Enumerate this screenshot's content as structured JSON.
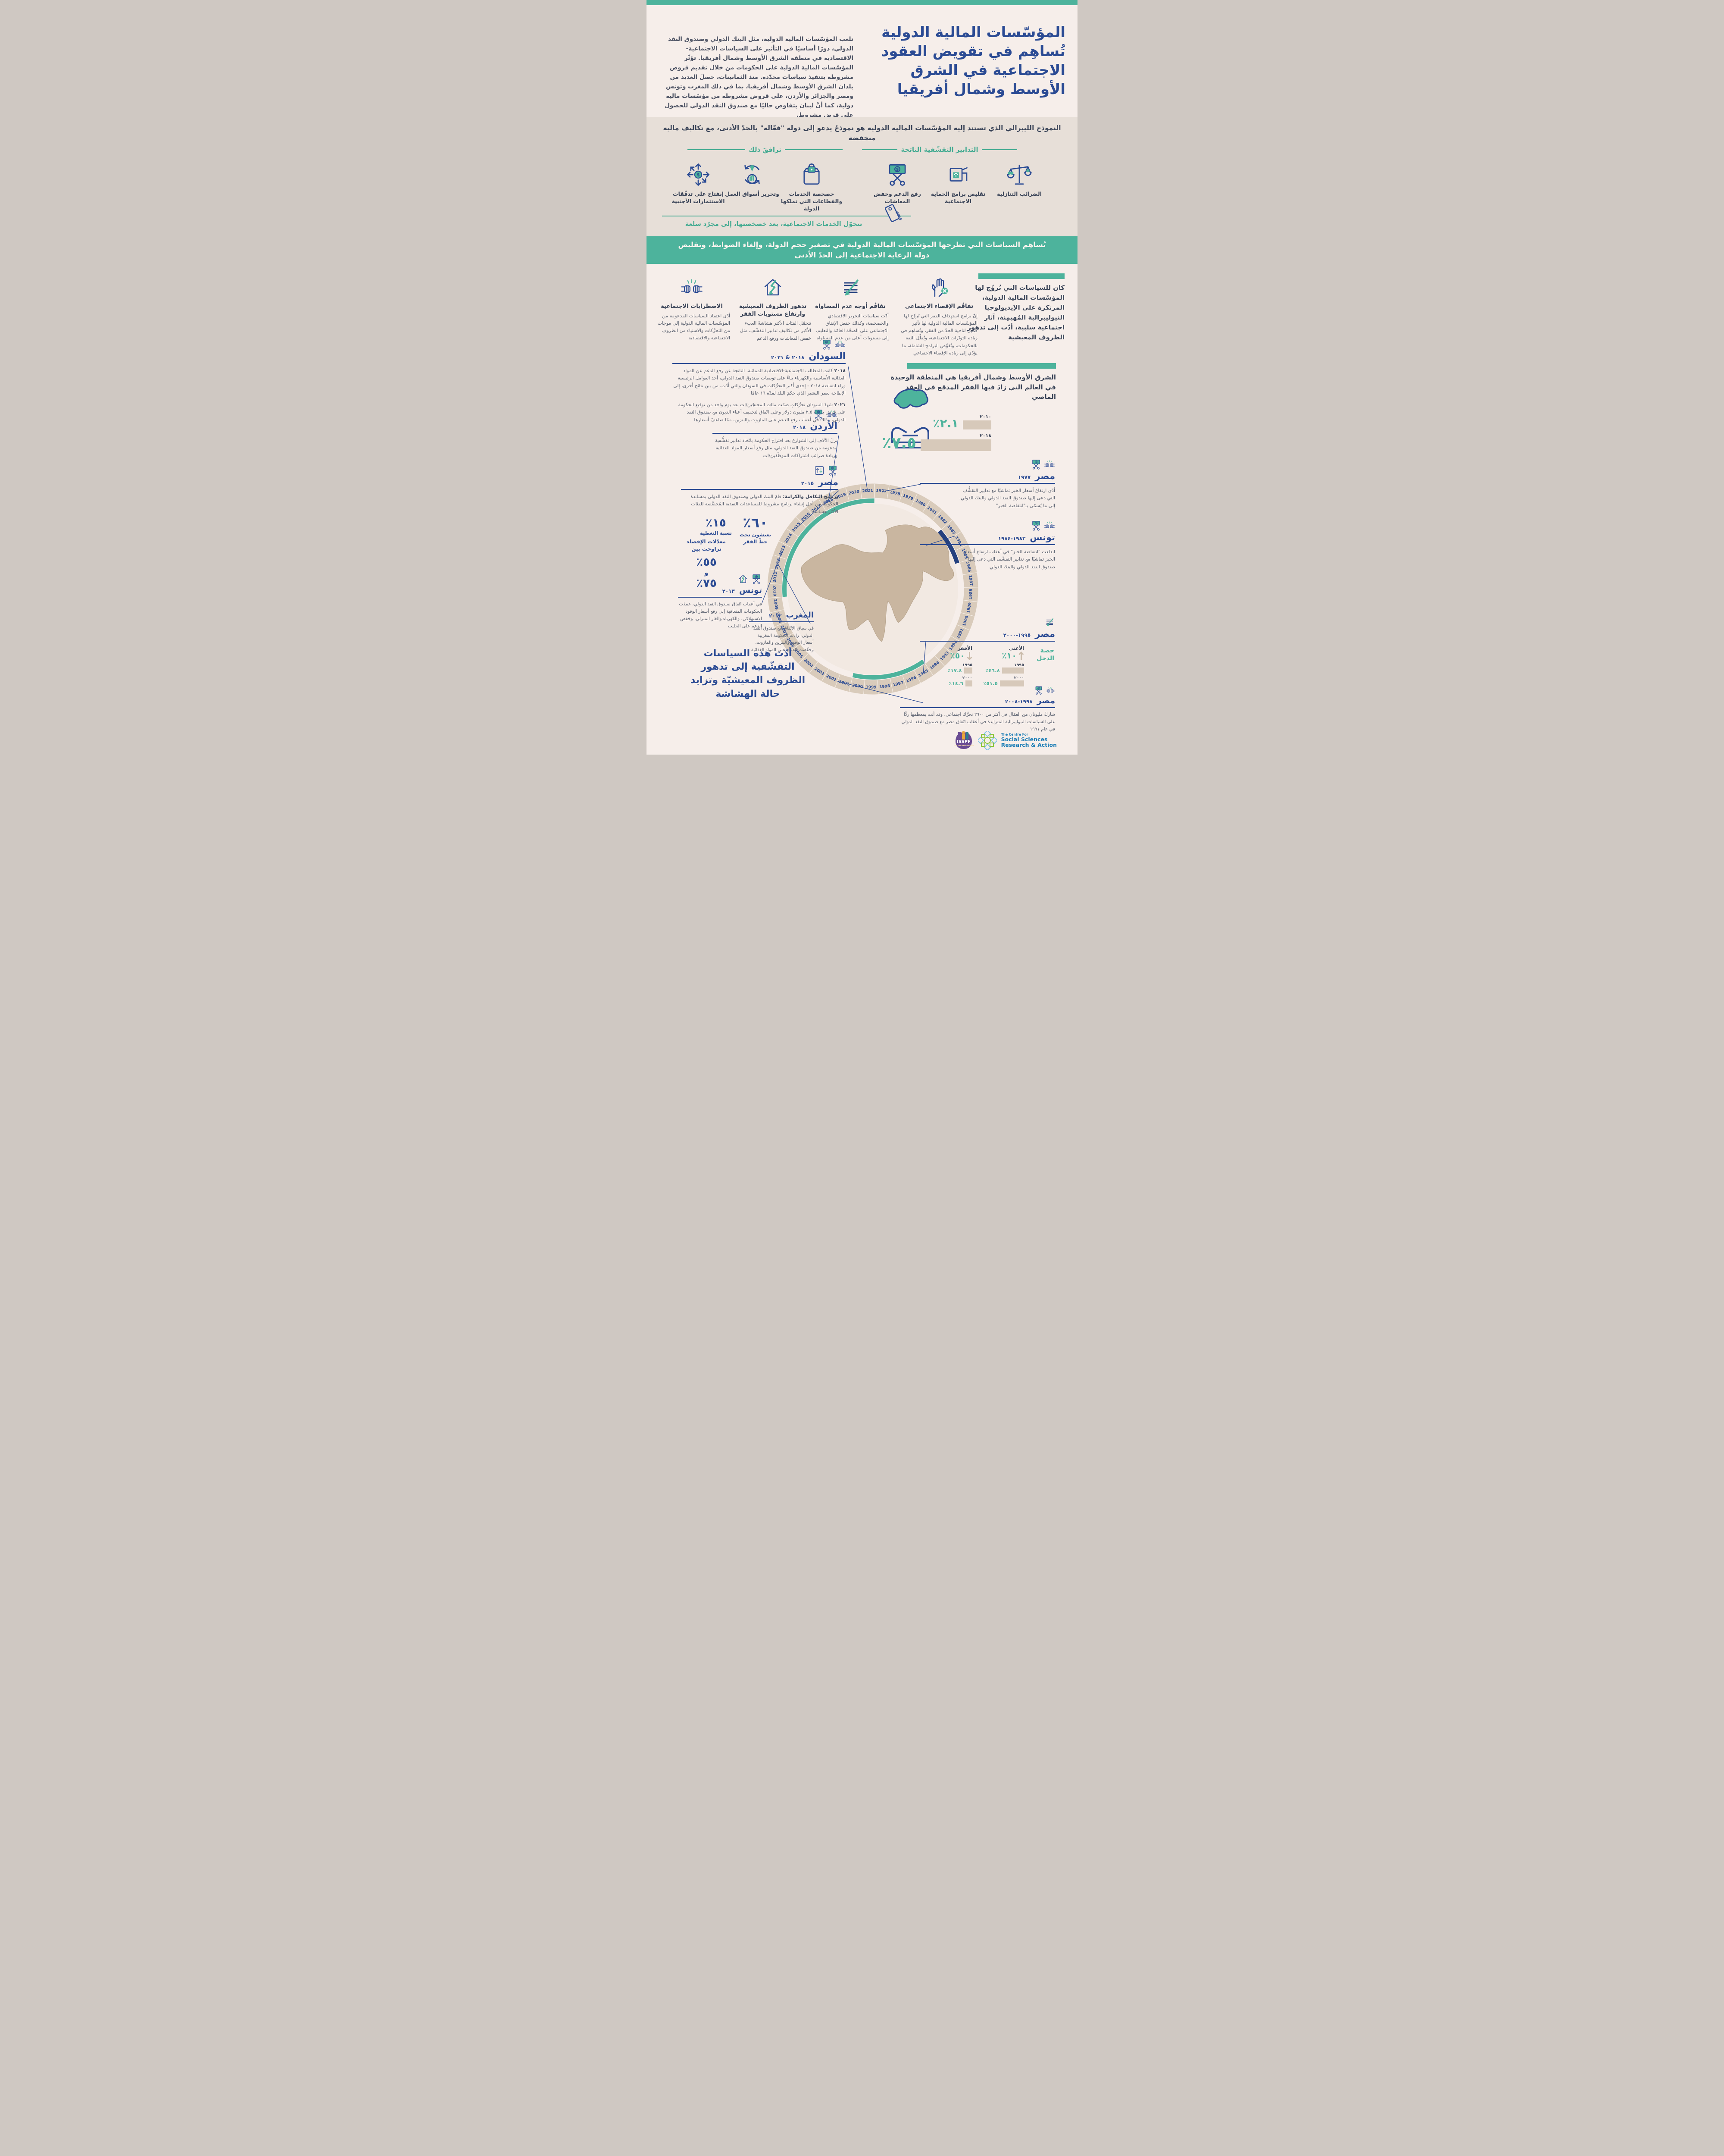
{
  "page": {
    "bg": "#f6eeea",
    "accent_green": "#4db39c",
    "navy": "#2b4b94",
    "dark_navy": "#24407e",
    "text_gray": "#5b6270",
    "beige": "#e7dfd8",
    "bar_beige": "#d7c9ba"
  },
  "header": {
    "title": "المؤسّسات المالية الدولية تُساهِم في تقويض العقود الاجتماعية في الشرق الأوسط وشمال أفريقيا",
    "intro": "تلعب المؤسّسات المالية الدولية، مثل البنك الدولي وصندوق النقد الدولي، دورًا أساسيًا في التأثير على السياسات الاجتماعية-الاقتصادية في منطقة الشرق الأوسط وشمال أفريقيا. تؤثّر المؤسّسات المالية الدولية على الحكومات من خلال تقديم قروض مشروطة بتنفيذ سياسات محدّدة. منذ الثمانينات، حصلَ العديد من بلدان الشرق الأوسط وشمال أفريقيا، بما في ذلك المغرب وتونس ومصر والجزائر والأردن، على قروض مشروطة من مؤسّسات مالية دولية، كما أنَّ لبنان يتفاوض حاليًا مع صندوق النقد الدولي للحصول على قرض مشروط."
  },
  "model": {
    "text": "النموذج الليبرالي الذي تستند إليه المؤسّسات المالية الدولية هو نموذجٌ يدعو إلى دولة \"فعّالة\" بالحدّ الأدنى، مع تكاليف مالية منخفضة"
  },
  "austerity": {
    "right_header": "التدابير التقشّفية الناتجة",
    "left_header": "ترافقَ ذلك",
    "measures": [
      {
        "icon": "scales-icon",
        "label": "الضرائب التنازلية"
      },
      {
        "icon": "social-protection-cut-icon",
        "label": "تقليص برامج الحماية الاجتماعية"
      },
      {
        "icon": "cut-subsidies-icon",
        "label": "رفع الدعم وخفض المعاشات"
      }
    ],
    "accompanied": [
      {
        "icon": "privatization-lock-icon",
        "label": "خصخصة الخدمات والقطاعات التي تملكها الدولة"
      },
      {
        "icon": "labor-market-icon",
        "label": "وتحرير أسواق العمل"
      },
      {
        "icon": "foreign-investment-icon",
        "label": "إنفتاح على تدفّقات الاستثمارات الأجنبية"
      }
    ],
    "sale_tag": "SALE",
    "note": "تتحوّل الخدمات الاجتماعية، بعد خصخصتها، إلى مجرّد سلعة"
  },
  "green_band": {
    "text": "تُساهِم السياسات التي تطرحها المؤسّسات المالية الدولية في تصغير حجم الدولة، وإلغاء الضوابط، وتقليص دولة الرعاية الاجتماعية إلى الحدّ الأدنى"
  },
  "impacts": {
    "paragraph": "كان للسياسات التي تُروِّج لها المؤسّسات المالية الدولية، المرتكزة على الإيديولوجيا النيوليبرالية المُهيمِنة، آثار اجتماعية سلبية، أدّت إلى تدهور الظروف المعيشية",
    "items": [
      {
        "icon": "hand-stop-icon",
        "title": "تفاقُم الإقصاء الاجتماعي",
        "text": "إنّ برامج استهداف الفقر التي تُروِّج لها المؤسّسات المالية الدولية لها تأثير ضئيل لناحية الحدّ من الفقر، وتُساهِم في زيادة التوتّرات الاجتماعية، وتُقلِّل الثقة بالحكومات، وتُقوِّض البرامج الشاملة، ما يؤدّي إلى زيادة الإقصاء الاجتماعي"
      },
      {
        "icon": "inequality-icon",
        "title": "تفاقُم أوجه عدم المساواة",
        "text": "أدّت سياسات التحرير الاقتصادي والخصخصة، وكذلك خفض الإنفاق الاجتماعي على الصحّة العامّة والتعليم، إلى مستويات أعلى من عدم المساواة"
      },
      {
        "icon": "house-decline-icon",
        "title": "تدهور الظروف المعيشية وارتفاع مستويات الفقر",
        "text": "تتحمّل الفئات الأكثر هشاشةً العبء الأكبر من تكاليف تدابير التقشّف، مثل خفض المعاشات ورفع الدعم"
      },
      {
        "icon": "unrest-icon",
        "title": "الاضطرابات الاجتماعية",
        "text": "أدّى اعتماد السياسات المدعومة من المؤسّسات المالية الدولية إلى موجات من التحرُّكات والاستياء من الظروف الاجتماعية والاقتصادية"
      }
    ]
  },
  "mena": {
    "headline": "الشرق الأوسط وشمال أفريقيا هي المنطقة الوحيدة في العالم التي زادَ فيها الفقر المدقع في العقد الماضي",
    "icon": "hands-region-icon",
    "bars": [
      {
        "year": "٢٠١٠",
        "value": "٢.١٪",
        "pct": 2.1
      },
      {
        "year": "٢٠١٨",
        "value": "٧.٥٪",
        "pct": 7.5
      }
    ]
  },
  "countries": {
    "sudan": {
      "name": "السودان",
      "period": "٢٠١٨ & ٢٠٢١",
      "icons": [
        "unrest-icon",
        "cut-subsidies-icon"
      ],
      "events": [
        {
          "year": "٢٠١٨",
          "text": "كانت المطالب الاجتماعية-الاقتصادية المماثلة، الناتجة عن رفع الدعم عن المواد الغذائية الأساسية والكهرباء بناءً على توصيات صندوق النقد الدولي، أحد العوامل الرئيسية وراء انتفاضة ٢٠١٨ - إحدى أكبر التحرُّكات في السودان والتي أدّت، من بين نتائج أخرى، إلى الإطاحة بعمر البشير الذي حكمَ البلد لمدّة ١٦ عامًا"
        },
        {
          "year": "٢٠٢١",
          "text": "شهدَ السودان تحرُّكاتٍ ضمّت مئات المحتجّين/ات بعد يوم واحد من توقيع الحكومة على قرض بقيمة ٢,٥ مليون دولار وعلى اتّفاق لتخفيف أعباء الديون مع صندوق النقد الدولي، وذلك في أعقاب رفع الدعم على المازوت والبنزين، ممّا ضاعفَ أسعارها"
        }
      ]
    },
    "jordan": {
      "name": "الأردن",
      "period": "٢٠١٨",
      "icons": [
        "unrest-icon",
        "cut-subsidies-icon"
      ],
      "text": "نزلَ الآلاف إلى الشوارع بعد اقتراح الحكومة باتّخاذ تدابير تقشُّفية مدعومة من صندوق النقد الدولي، مثل رفع أسعار المواد الغذائية وزيادة ضرائب اشتراكات الموظّفين/ات"
    },
    "egypt2015": {
      "name": "مصر",
      "period": "٢٠١٥",
      "icons": [
        "cut-subsidies-icon",
        "price-updown-icon"
      ],
      "program": "برنامج التكافل والكرامة:",
      "text": "قامَ البنك الدولي وصندوق النقد الدولي بمساندة الحكومة من أجل إنشاء برنامج مشروط للمساعدات النقدية المُخصَّصة للفئات الأكثر هشاشةً",
      "stats": {
        "coverage_value": "١٥٪",
        "coverage_label": "نسبة التغطية",
        "poverty_value": "٦٠٪",
        "poverty_label": "يعيشون تحت\nخطّ الفقر",
        "exclusion_label": "معدّلات الإقصاء\nتراوحت بين",
        "exclusion_low": "٥٥٪",
        "exclusion_and": "و",
        "exclusion_high": "٧٥٪"
      }
    },
    "tunisia2013": {
      "name": "تونس",
      "period": "٢٠١٣",
      "icons": [
        "cut-subsidies-icon",
        "house-decline-icon"
      ],
      "text": "في أعقاب اتّفاق صندوق النقد الدولي، عمدَت الحكومات المتعاقبة إلى رفع أسعار الوقود الاستهلاكي، والكهرباء والغاز المنزلي، وخفض الدعم على الحليب"
    },
    "morocco2012": {
      "name": "المغرب",
      "period": "٢٠١٢",
      "text": "في سياق الاتّفاق مع صندوق النقد الدولي، زادت الحكومة المغربية أسعار الوقود والبنزين والمازوت، وخفّضت الدعم على المواد الغذائية"
    },
    "egypt1977": {
      "name": "مصر",
      "period": "١٩٧٧",
      "icons": [
        "unrest-icon",
        "cut-subsidies-icon"
      ],
      "text": "أدّى ارتفاع أسعار الخبز تماشيًا مع تدابير التقشُّف التي دعى إليها صندوق النقد الدولي والبنك الدولي، إلى ما يُسمّى بـ\"انتفاضة الخبز\""
    },
    "tunisia1983": {
      "name": "تونس",
      "period": "١٩٨٣-١٩٨٤",
      "icons": [
        "unrest-icon",
        "cut-subsidies-icon"
      ],
      "text": "اندلعت \"انتفاضة الخبز\" في أعقاب ارتفاع أسعار الخبز تماشيًا مع تدابير التقشّف التي دعى إليها صندوق النقد الدولي والبنك الدولي"
    },
    "egypt1995": {
      "name": "مصر",
      "period": "١٩٩٥-٢٠٠٠",
      "icons": [
        "inequality-icon"
      ],
      "income_label": "حصة\nالدخل",
      "richest_label": "الأغنى",
      "richest_pct": "١٠٪",
      "poorest_label": "الأفقر",
      "poorest_pct": "٥٠٪",
      "rows": [
        {
          "year": "١٩٩٥",
          "richest": "٤٦.٨٪",
          "poorest": "١٧.٤٪"
        },
        {
          "year": "٢٠٠٠",
          "richest": "٥١.٥٪",
          "poorest": "١٤.٦٪"
        }
      ]
    },
    "egypt1998": {
      "name": "مصر",
      "period": "١٩٩٨-٢٠٠٨",
      "icons": [
        "unrest-icon",
        "cut-subsidies-icon"
      ],
      "text": "شاركَ مليونان من العمّال في أكثر من ٢٦٠٠ تحرُّك اجتماعي، وقد أتت بمعظمها ردًّا على السياسات النيوليبرالية المتزايدة في أعقاب اتّفاق مصر مع صندوق النقد الدولي في عام ١٩٩١"
    }
  },
  "conclusion": {
    "text": "أدّت هذه السياسات\nالتقشّفية إلى تدهور\nالظروف المعيشيّة وتزايد\nحالة الهشاشة"
  },
  "timeline": {
    "start": 1977,
    "end": 2021,
    "arcs": [
      {
        "from": 1995,
        "to": 2000,
        "color": "#4db39c"
      },
      {
        "from": 2010,
        "to": 2021,
        "color": "#4db39c"
      },
      {
        "from": 1983,
        "to": 1985,
        "color": "#24407e"
      }
    ]
  },
  "footer": {
    "isspf": "ISSPF",
    "isspf_sub": "FOR THE MENA REGION",
    "centre_top": "The Centre For",
    "centre_mid": "Social Sciences",
    "centre_bot": "Research & Action"
  },
  "chart_data": [
    {
      "type": "bar",
      "title": "الفقر المدقع في الشرق الأوسط وشمال أفريقيا",
      "categories": [
        "2010",
        "2018"
      ],
      "values": [
        2.1,
        7.5
      ],
      "unit": "%",
      "ylim": [
        0,
        8
      ]
    },
    {
      "type": "bar",
      "title": "حصة الدخل في مصر 1995-2000",
      "categories": [
        "1995",
        "2000"
      ],
      "series": [
        {
          "name": "الأغنى 10%",
          "values": [
            46.8,
            51.5
          ]
        },
        {
          "name": "الأفقر 50%",
          "values": [
            17.4,
            14.6
          ]
        }
      ],
      "unit": "%"
    },
    {
      "type": "table",
      "title": "برنامج التكافل والكرامة - مصر 2015",
      "rows": [
        [
          "نسبة التغطية",
          "15%"
        ],
        [
          "يعيشون تحت خط الفقر",
          "60%"
        ],
        [
          "معدلات الإقصاء تراوحت بين",
          "55% - 75%"
        ]
      ]
    }
  ]
}
